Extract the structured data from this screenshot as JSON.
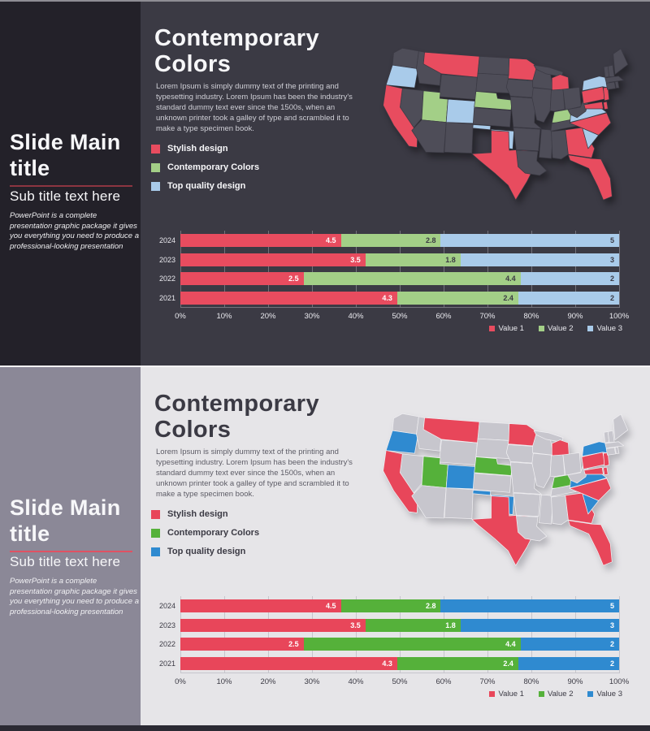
{
  "page": {
    "top_border_color": "#8e8d94",
    "divider_color": "#f4f3f5",
    "bottom_bar_color": "#2b2a33"
  },
  "slides": [
    {
      "theme": "dark",
      "sidebar": {
        "title": "Slide Main title",
        "subtitle": "Sub title text here",
        "description": "PowerPoint is a complete presentation graphic package it gives you everything you need to produce a professional-looking presentation"
      },
      "main": {
        "title": "Contemporary Colors",
        "paragraph": "Lorem Ipsum is simply dummy text of the printing and typesetting industry. Lorem Ipsum has been the industry's standard dummy text ever since the 1500s, when an unknown printer took a galley of type and scrambled it to make a type specimen book.",
        "legend": [
          {
            "label": "Stylish design",
            "color_key": "red"
          },
          {
            "label": "Contemporary Colors",
            "color_key": "green"
          },
          {
            "label": "Top quality design",
            "color_key": "blue"
          }
        ]
      },
      "palette": {
        "bg": "#3b3a44",
        "sidebar_bg": "#232129",
        "heading": "#f7f7f9",
        "body_text": "#cfcfd6",
        "sidebar_text": "#f7f7f9",
        "rule": "#8c3540",
        "red": "#e84c5f",
        "green": "#a3cf87",
        "blue": "#a9cbea",
        "neutral_state": "#4e4d58",
        "map_stroke": "#3b3a44",
        "grid": "#73727b",
        "axis_text": "#e9e9ee",
        "bar_label_colors": {
          "red": "#ffffff",
          "green": "#3b3a44",
          "blue": "#3b3a44"
        }
      }
    },
    {
      "theme": "light",
      "sidebar": {
        "title": "Slide Main title",
        "subtitle": "Sub title text here",
        "description": "PowerPoint is a complete presentation graphic package it gives you everything you need to produce a professional-looking presentation"
      },
      "main": {
        "title": "Contemporary Colors",
        "paragraph": "Lorem Ipsum is simply dummy text of the printing and typesetting industry. Lorem Ipsum has been the industry's standard dummy text ever since the 1500s, when an unknown printer took a galley of type and scrambled it to make a type specimen book.",
        "legend": [
          {
            "label": "Stylish design",
            "color_key": "red"
          },
          {
            "label": "Contemporary Colors",
            "color_key": "green"
          },
          {
            "label": "Top quality design",
            "color_key": "blue"
          }
        ]
      },
      "palette": {
        "bg": "#e6e5e8",
        "sidebar_bg": "#8b8897",
        "heading": "#3b3a44",
        "body_text": "#5d5c66",
        "sidebar_text": "#f7f7f9",
        "rule": "#e05263",
        "red": "#e8465a",
        "green": "#55b13a",
        "blue": "#2f8ad0",
        "neutral_state": "#c7c6cd",
        "map_stroke": "#f0eff2",
        "grid": "#c6c5cc",
        "axis_text": "#3b3a44",
        "bar_label_colors": {
          "red": "#ffffff",
          "green": "#ffffff",
          "blue": "#ffffff"
        }
      }
    }
  ],
  "chart_data": [
    {
      "type": "bar",
      "variant": "horizontal-100%-stacked",
      "title": "",
      "categories": [
        "2024",
        "2023",
        "2022",
        "2021"
      ],
      "series": [
        {
          "name": "Value 1",
          "color_key": "red",
          "values": [
            4.5,
            3.5,
            2.5,
            4.3
          ]
        },
        {
          "name": "Value 2",
          "color_key": "green",
          "values": [
            2.8,
            1.8,
            4.4,
            2.4
          ]
        },
        {
          "name": "Value 3",
          "color_key": "blue",
          "values": [
            5,
            3,
            2,
            2
          ]
        }
      ],
      "x_ticks": [
        "0%",
        "10%",
        "20%",
        "30%",
        "40%",
        "50%",
        "60%",
        "70%",
        "80%",
        "90%",
        "100%"
      ],
      "xlim": [
        0,
        100
      ],
      "grid": true,
      "legend_position": "bottom-right"
    },
    {
      "type": "choropleth",
      "region": "USA contiguous states",
      "categories": {
        "red": [
          "CA",
          "MT",
          "MN",
          "MI",
          "PA",
          "NJ",
          "DE",
          "MD",
          "TX",
          "NC",
          "GA",
          "FL"
        ],
        "green": [
          "UT",
          "NE",
          "KY"
        ],
        "blue": [
          "OR",
          "CO",
          "OK",
          "NY",
          "VA",
          "SC"
        ]
      },
      "neutral": "all other states"
    }
  ]
}
